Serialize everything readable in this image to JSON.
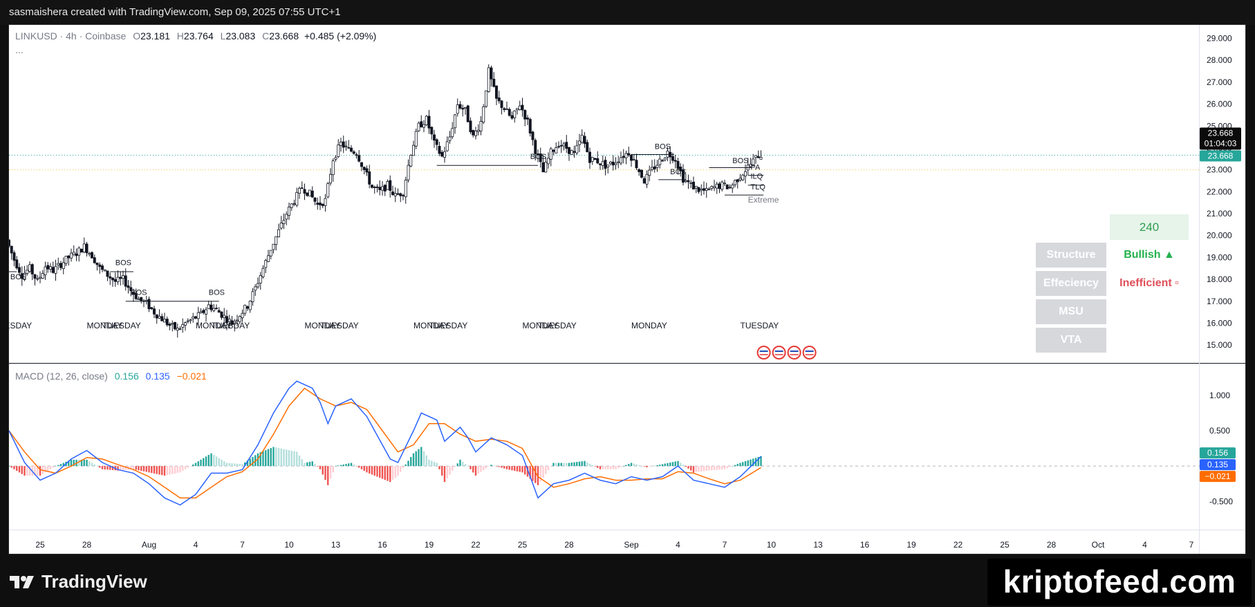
{
  "header": {
    "caption": "sasmaishera created with TradingView.com, Sep 09, 2025 07:55 UTC+1"
  },
  "legend": {
    "symbol": "LINKUSD · 4h · Coinbase",
    "o_label": "O",
    "o": "23.181",
    "h_label": "H",
    "h": "23.764",
    "l_label": "L",
    "l": "23.083",
    "c_label": "C",
    "c": "23.668",
    "change": "+0.485 (+2.09%)",
    "more": "..."
  },
  "macd_legend": {
    "title": "MACD (12, 26, close)",
    "hist": "0.156",
    "macd": "0.135",
    "signal": "−0.021"
  },
  "panel": {
    "timeframe": "240",
    "rows": [
      {
        "label": "Structure",
        "value": "Bullish ▲",
        "color": "#22b24c"
      },
      {
        "label": "Effeciency",
        "value": "Inefficient ▫",
        "color": "#e0505a"
      },
      {
        "label": "MSU",
        "value": "",
        "color": "#000000"
      },
      {
        "label": "VTA",
        "value": "",
        "color": "#000000"
      }
    ]
  },
  "branding": {
    "tradingview": "TradingView",
    "watermark": "kriptofeed.com"
  },
  "colors": {
    "up": "#26a69a",
    "down": "#ef5350",
    "macd_line": "#2962ff",
    "signal_line": "#ff6d00",
    "price_badge": "#0b0b0b",
    "current_badge": "#26a69a"
  },
  "chart_data": [
    {
      "type": "candlestick",
      "symbol": "LINKUSD",
      "timeframe": "4h",
      "exchange": "Coinbase",
      "price_axis_ticks": [
        "29.000",
        "28.000",
        "27.000",
        "26.000",
        "25.000",
        "24.000",
        "23.000",
        "22.000",
        "21.000",
        "20.000",
        "19.000",
        "18.000",
        "17.000",
        "16.000",
        "15.000"
      ],
      "ylim": [
        14.5,
        29.3
      ],
      "x_ticks": [
        "25",
        "28",
        "Aug",
        "4",
        "7",
        "10",
        "13",
        "16",
        "19",
        "22",
        "25",
        "28",
        "Sep",
        "4",
        "7",
        "10",
        "13",
        "16",
        "19",
        "22",
        "25",
        "28",
        "Oct",
        "4",
        "7"
      ],
      "close_badge": {
        "price": "23.668",
        "countdown": "01:04:03"
      },
      "current_badge": "23.668",
      "price_path": [
        [
          "2025-07-23T00:00",
          19.8
        ],
        [
          "2025-07-23T12:00",
          18.9
        ],
        [
          "2025-07-24T00:00",
          18.2
        ],
        [
          "2025-07-24T12:00",
          18.5
        ],
        [
          "2025-07-25T00:00",
          17.9
        ],
        [
          "2025-07-25T12:00",
          18.6
        ],
        [
          "2025-07-26T00:00",
          18.4
        ],
        [
          "2025-07-26T12:00",
          18.7
        ],
        [
          "2025-07-27T00:00",
          19.0
        ],
        [
          "2025-07-27T12:00",
          19.2
        ],
        [
          "2025-07-28T00:00",
          19.5
        ],
        [
          "2025-07-28T12:00",
          19.1
        ],
        [
          "2025-07-29T00:00",
          18.5
        ],
        [
          "2025-07-29T12:00",
          18.2
        ],
        [
          "2025-07-30T00:00",
          17.9
        ],
        [
          "2025-07-30T12:00",
          18.0
        ],
        [
          "2025-07-31T00:00",
          17.5
        ],
        [
          "2025-07-31T12:00",
          17.1
        ],
        [
          "2025-08-01T00:00",
          16.9
        ],
        [
          "2025-08-01T12:00",
          16.5
        ],
        [
          "2025-08-02T00:00",
          16.2
        ],
        [
          "2025-08-02T12:00",
          15.9
        ],
        [
          "2025-08-03T00:00",
          15.7
        ],
        [
          "2025-08-03T12:00",
          16.0
        ],
        [
          "2025-08-04T00:00",
          16.2
        ],
        [
          "2025-08-04T12:00",
          16.4
        ],
        [
          "2025-08-05T00:00",
          16.8
        ],
        [
          "2025-08-05T12:00",
          16.6
        ],
        [
          "2025-08-06T00:00",
          16.3
        ],
        [
          "2025-08-06T12:00",
          16.0
        ],
        [
          "2025-08-07T00:00",
          16.4
        ],
        [
          "2025-08-07T12:00",
          16.8
        ],
        [
          "2025-08-08T00:00",
          17.6
        ],
        [
          "2025-08-08T12:00",
          18.5
        ],
        [
          "2025-08-09T00:00",
          19.4
        ],
        [
          "2025-08-09T12:00",
          20.2
        ],
        [
          "2025-08-10T00:00",
          21.0
        ],
        [
          "2025-08-10T12:00",
          21.6
        ],
        [
          "2025-08-11T00:00",
          22.2
        ],
        [
          "2025-08-11T12:00",
          21.9
        ],
        [
          "2025-08-12T00:00",
          21.4
        ],
        [
          "2025-08-12T12:00",
          21.6
        ],
        [
          "2025-08-13T00:00",
          23.5
        ],
        [
          "2025-08-13T12:00",
          24.2
        ],
        [
          "2025-08-14T00:00",
          23.9
        ],
        [
          "2025-08-14T12:00",
          23.8
        ],
        [
          "2025-08-15T00:00",
          23.0
        ],
        [
          "2025-08-15T12:00",
          22.2
        ],
        [
          "2025-08-16T00:00",
          22.0
        ],
        [
          "2025-08-16T12:00",
          22.3
        ],
        [
          "2025-08-17T00:00",
          21.8
        ],
        [
          "2025-08-17T12:00",
          22.0
        ],
        [
          "2025-08-18T00:00",
          23.8
        ],
        [
          "2025-08-18T12:00",
          25.0
        ],
        [
          "2025-08-19T00:00",
          25.3
        ],
        [
          "2025-08-19T12:00",
          24.2
        ],
        [
          "2025-08-20T00:00",
          23.6
        ],
        [
          "2025-08-20T12:00",
          24.5
        ],
        [
          "2025-08-21T00:00",
          26.0
        ],
        [
          "2025-08-21T12:00",
          25.7
        ],
        [
          "2025-08-22T00:00",
          24.5
        ],
        [
          "2025-08-22T12:00",
          25.2
        ],
        [
          "2025-08-23T00:00",
          27.5
        ],
        [
          "2025-08-23T12:00",
          26.2
        ],
        [
          "2025-08-24T00:00",
          25.8
        ],
        [
          "2025-08-24T12:00",
          25.3
        ],
        [
          "2025-08-25T00:00",
          26.0
        ],
        [
          "2025-08-25T12:00",
          25.2
        ],
        [
          "2025-08-26T00:00",
          23.9
        ],
        [
          "2025-08-26T12:00",
          22.9
        ],
        [
          "2025-08-27T00:00",
          23.8
        ],
        [
          "2025-08-27T12:00",
          24.2
        ],
        [
          "2025-08-28T00:00",
          24.0
        ],
        [
          "2025-08-28T12:00",
          23.7
        ],
        [
          "2025-08-29T00:00",
          24.5
        ],
        [
          "2025-08-29T12:00",
          23.5
        ],
        [
          "2025-08-30T00:00",
          23.4
        ],
        [
          "2025-08-30T12:00",
          23.2
        ],
        [
          "2025-08-31T00:00",
          23.3
        ],
        [
          "2025-08-31T12:00",
          23.6
        ],
        [
          "2025-09-01T00:00",
          23.8
        ],
        [
          "2025-09-01T12:00",
          23.2
        ],
        [
          "2025-09-02T00:00",
          22.5
        ],
        [
          "2025-09-02T12:00",
          23.0
        ],
        [
          "2025-09-03T00:00",
          23.4
        ],
        [
          "2025-09-03T12:00",
          23.8
        ],
        [
          "2025-09-04T00:00",
          23.5
        ],
        [
          "2025-09-04T12:00",
          22.6
        ],
        [
          "2025-09-05T00:00",
          22.3
        ],
        [
          "2025-09-05T12:00",
          22.1
        ],
        [
          "2025-09-06T00:00",
          22.0
        ],
        [
          "2025-09-06T12:00",
          22.2
        ],
        [
          "2025-09-07T00:00",
          22.3
        ],
        [
          "2025-09-07T12:00",
          22.2
        ],
        [
          "2025-09-08T00:00",
          22.6
        ],
        [
          "2025-09-08T12:00",
          23.0
        ],
        [
          "2025-09-09T00:00",
          23.4
        ],
        [
          "2025-09-09T08:00",
          23.668
        ]
      ],
      "annotations": [
        {
          "text": "BOS",
          "date": "2025-07-23T02:00",
          "price": 18.0
        },
        {
          "text": "BOS",
          "date": "2025-07-29T20:00",
          "price": 18.65
        },
        {
          "text": "BOS",
          "date": "2025-07-30T20:00",
          "price": 17.3
        },
        {
          "text": "BOS",
          "date": "2025-08-04T20:00",
          "price": 17.3
        },
        {
          "text": "BOS",
          "date": "2025-08-25T12:00",
          "price": 23.5
        },
        {
          "text": "BOS",
          "date": "2025-09-02T12:00",
          "price": 23.95
        },
        {
          "text": "BOS",
          "date": "2025-09-03T12:00",
          "price": 22.8
        },
        {
          "text": "BOS",
          "date": "2025-09-07T12:00",
          "price": 23.3
        },
        {
          "text": "PA",
          "date": "2025-09-08T16:00",
          "price": 23.0
        },
        {
          "text": "ILQ",
          "date": "2025-09-08T16:00",
          "price": 22.6
        },
        {
          "text": "TLQ",
          "date": "2025-09-08T16:00",
          "price": 22.1
        },
        {
          "text": "Extreme",
          "date": "2025-09-08T12:00",
          "price": 21.5
        }
      ],
      "day_labels": [
        "TUESDAY",
        "MONDAY",
        "TUESDAY",
        "MONDAY",
        "TUESDAY",
        "MONDAY",
        "TUESDAY",
        "MONDAY",
        "TUESDAY",
        "MONDAY",
        "TUESDAY",
        "MONDAY",
        "TUESDAY"
      ]
    },
    {
      "type": "line",
      "title": "MACD (12, 26, close)",
      "series": [
        {
          "name": "Histogram",
          "last": 0.156
        },
        {
          "name": "MACD",
          "last": 0.135
        },
        {
          "name": "Signal",
          "last": -0.021
        }
      ],
      "y_ticks": [
        "1.000",
        "0.500",
        "-0.500"
      ],
      "ylim": [
        -0.8,
        1.35
      ],
      "macd_path": [
        [
          "2025-07-23T00:00",
          0.5
        ],
        [
          "2025-07-24T00:00",
          0.05
        ],
        [
          "2025-07-25T00:00",
          -0.2
        ],
        [
          "2025-07-26T00:00",
          -0.1
        ],
        [
          "2025-07-27T00:00",
          0.1
        ],
        [
          "2025-07-28T00:00",
          0.22
        ],
        [
          "2025-07-29T00:00",
          0.05
        ],
        [
          "2025-07-30T00:00",
          -0.05
        ],
        [
          "2025-07-31T00:00",
          -0.1
        ],
        [
          "2025-08-01T00:00",
          -0.25
        ],
        [
          "2025-08-02T00:00",
          -0.45
        ],
        [
          "2025-08-03T00:00",
          -0.55
        ],
        [
          "2025-08-04T00:00",
          -0.4
        ],
        [
          "2025-08-05T00:00",
          -0.1
        ],
        [
          "2025-08-06T00:00",
          -0.1
        ],
        [
          "2025-08-07T00:00",
          -0.05
        ],
        [
          "2025-08-08T00:00",
          0.3
        ],
        [
          "2025-08-09T00:00",
          0.75
        ],
        [
          "2025-08-10T00:00",
          1.1
        ],
        [
          "2025-08-10T12:00",
          1.2
        ],
        [
          "2025-08-11T12:00",
          1.1
        ],
        [
          "2025-08-12T00:00",
          0.9
        ],
        [
          "2025-08-12T12:00",
          0.6
        ],
        [
          "2025-08-13T00:00",
          0.85
        ],
        [
          "2025-08-14T00:00",
          0.95
        ],
        [
          "2025-08-15T00:00",
          0.7
        ],
        [
          "2025-08-16T00:00",
          0.3
        ],
        [
          "2025-08-16T12:00",
          0.1
        ],
        [
          "2025-08-17T00:00",
          0.05
        ],
        [
          "2025-08-18T00:00",
          0.5
        ],
        [
          "2025-08-18T12:00",
          0.75
        ],
        [
          "2025-08-19T12:00",
          0.65
        ],
        [
          "2025-08-20T00:00",
          0.35
        ],
        [
          "2025-08-21T00:00",
          0.55
        ],
        [
          "2025-08-21T12:00",
          0.4
        ],
        [
          "2025-08-22T00:00",
          0.2
        ],
        [
          "2025-08-23T00:00",
          0.4
        ],
        [
          "2025-08-24T00:00",
          0.3
        ],
        [
          "2025-08-25T00:00",
          0.15
        ],
        [
          "2025-08-25T12:00",
          -0.15
        ],
        [
          "2025-08-26T00:00",
          -0.45
        ],
        [
          "2025-08-27T00:00",
          -0.25
        ],
        [
          "2025-08-28T00:00",
          -0.2
        ],
        [
          "2025-08-29T00:00",
          -0.1
        ],
        [
          "2025-08-30T00:00",
          -0.2
        ],
        [
          "2025-08-31T00:00",
          -0.25
        ],
        [
          "2025-09-01T00:00",
          -0.15
        ],
        [
          "2025-09-02T00:00",
          -0.2
        ],
        [
          "2025-09-03T00:00",
          -0.15
        ],
        [
          "2025-09-04T00:00",
          0.0
        ],
        [
          "2025-09-05T00:00",
          -0.2
        ],
        [
          "2025-09-06T00:00",
          -0.25
        ],
        [
          "2025-09-07T00:00",
          -0.3
        ],
        [
          "2025-09-08T00:00",
          -0.15
        ],
        [
          "2025-09-09T08:00",
          0.135
        ]
      ],
      "signal_path": [
        [
          "2025-07-23T00:00",
          0.5
        ],
        [
          "2025-07-24T00:00",
          0.2
        ],
        [
          "2025-07-25T00:00",
          -0.05
        ],
        [
          "2025-07-26T00:00",
          -0.1
        ],
        [
          "2025-07-27T00:00",
          0.0
        ],
        [
          "2025-07-28T00:00",
          0.12
        ],
        [
          "2025-07-29T00:00",
          0.1
        ],
        [
          "2025-07-30T00:00",
          0.02
        ],
        [
          "2025-07-31T00:00",
          -0.05
        ],
        [
          "2025-08-01T00:00",
          -0.15
        ],
        [
          "2025-08-02T00:00",
          -0.3
        ],
        [
          "2025-08-03T00:00",
          -0.45
        ],
        [
          "2025-08-04T00:00",
          -0.45
        ],
        [
          "2025-08-05T00:00",
          -0.3
        ],
        [
          "2025-08-06T00:00",
          -0.15
        ],
        [
          "2025-08-07T00:00",
          -0.08
        ],
        [
          "2025-08-08T00:00",
          0.1
        ],
        [
          "2025-08-09T00:00",
          0.45
        ],
        [
          "2025-08-10T00:00",
          0.85
        ],
        [
          "2025-08-11T00:00",
          1.1
        ],
        [
          "2025-08-12T00:00",
          0.95
        ],
        [
          "2025-08-13T00:00",
          0.85
        ],
        [
          "2025-08-14T00:00",
          0.9
        ],
        [
          "2025-08-15T00:00",
          0.8
        ],
        [
          "2025-08-16T00:00",
          0.5
        ],
        [
          "2025-08-17T00:00",
          0.2
        ],
        [
          "2025-08-18T00:00",
          0.3
        ],
        [
          "2025-08-19T00:00",
          0.6
        ],
        [
          "2025-08-20T00:00",
          0.6
        ],
        [
          "2025-08-21T00:00",
          0.45
        ],
        [
          "2025-08-22T00:00",
          0.35
        ],
        [
          "2025-08-23T00:00",
          0.38
        ],
        [
          "2025-08-24T00:00",
          0.35
        ],
        [
          "2025-08-25T00:00",
          0.25
        ],
        [
          "2025-08-26T00:00",
          -0.15
        ],
        [
          "2025-08-27T00:00",
          -0.3
        ],
        [
          "2025-08-28T00:00",
          -0.25
        ],
        [
          "2025-08-29T00:00",
          -0.18
        ],
        [
          "2025-08-30T00:00",
          -0.15
        ],
        [
          "2025-08-31T00:00",
          -0.2
        ],
        [
          "2025-09-01T00:00",
          -0.2
        ],
        [
          "2025-09-02T00:00",
          -0.18
        ],
        [
          "2025-09-03T00:00",
          -0.18
        ],
        [
          "2025-09-04T00:00",
          -0.08
        ],
        [
          "2025-09-05T00:00",
          -0.1
        ],
        [
          "2025-09-06T00:00",
          -0.18
        ],
        [
          "2025-09-07T00:00",
          -0.25
        ],
        [
          "2025-09-08T00:00",
          -0.2
        ],
        [
          "2025-09-09T08:00",
          -0.021
        ]
      ]
    }
  ]
}
